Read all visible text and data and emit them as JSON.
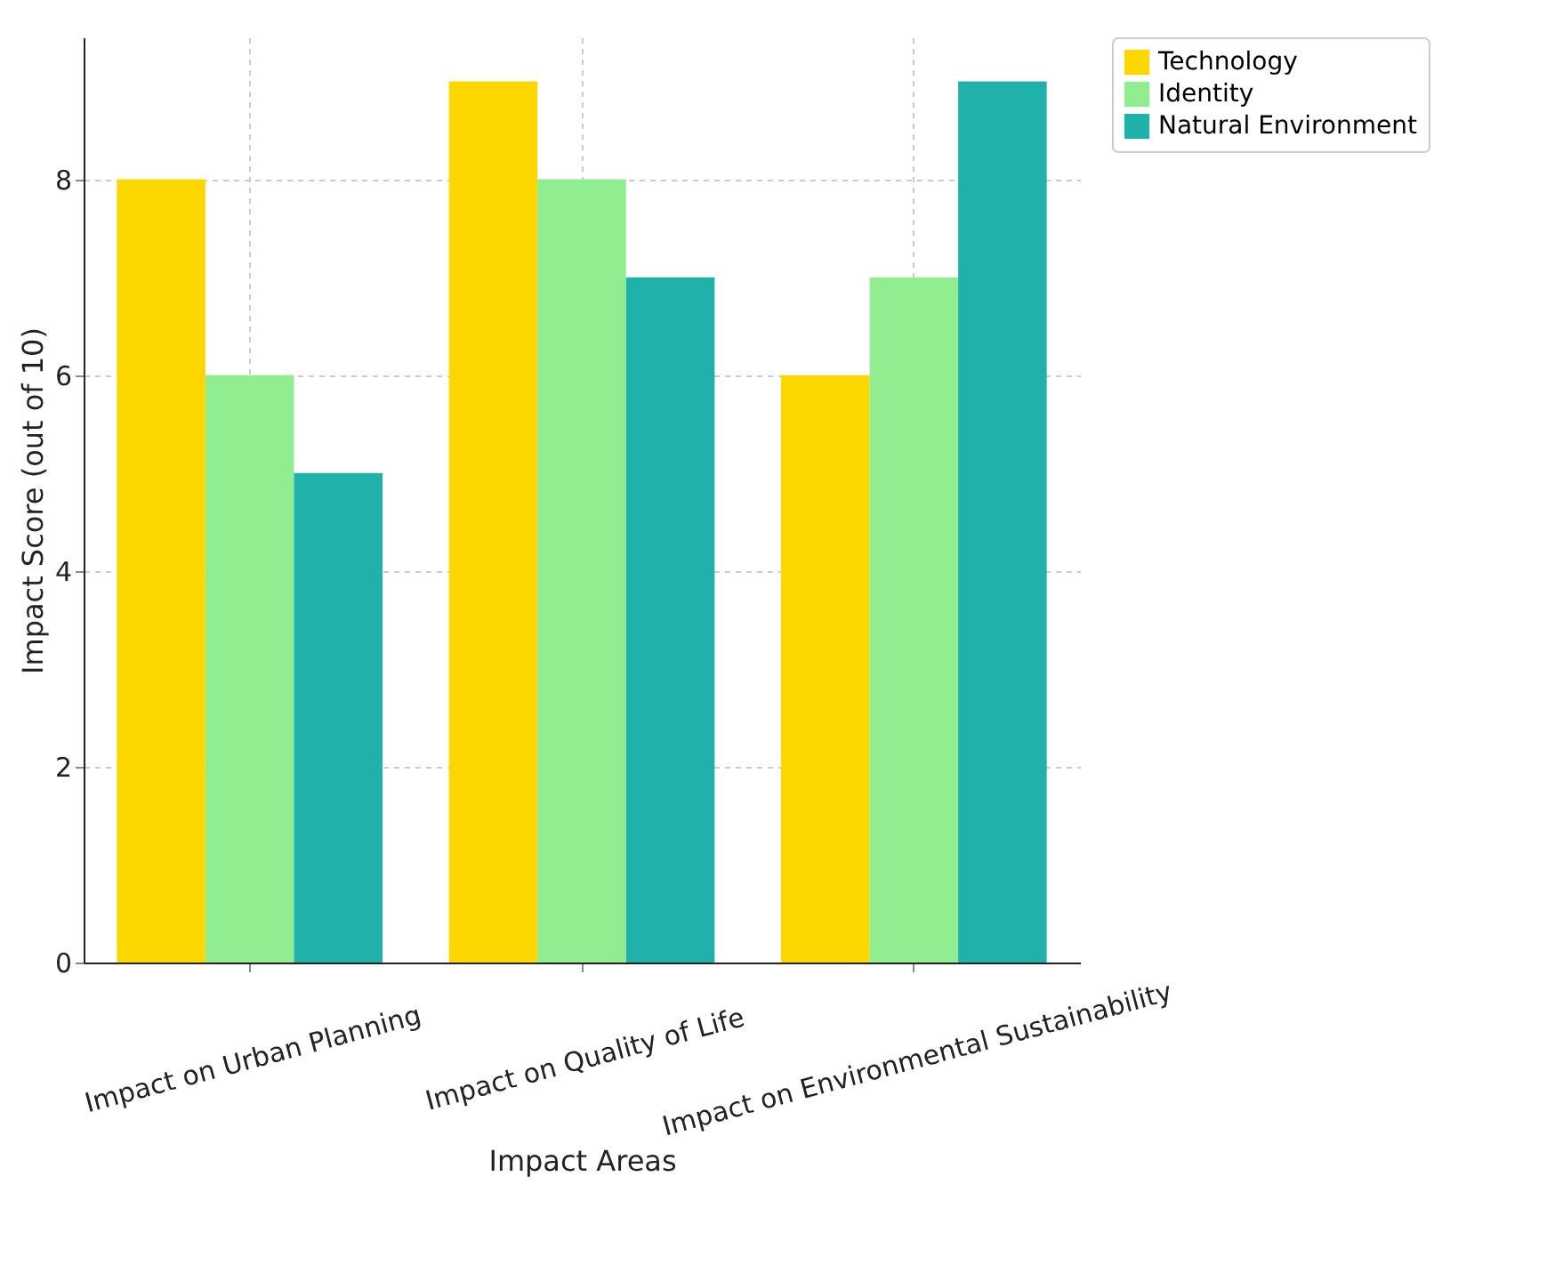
{
  "chart_data": {
    "type": "bar",
    "xlabel": "Impact Areas",
    "ylabel": "Impact Score (out of 10)",
    "categories": [
      "Impact on Urban Planning",
      "Impact on Quality of Life",
      "Impact on Environmental Sustainability"
    ],
    "series": [
      {
        "name": "Technology",
        "color": "#ffd700",
        "values": [
          8,
          9,
          6
        ]
      },
      {
        "name": "Identity",
        "color": "#90ee90",
        "values": [
          6,
          8,
          7
        ]
      },
      {
        "name": "Natural Environment",
        "color": "#20b2aa",
        "values": [
          5,
          7,
          9
        ]
      }
    ],
    "ylim": [
      0,
      9.45
    ],
    "yticks": [
      0,
      2,
      4,
      6,
      8
    ],
    "grid": true,
    "legend": "top right"
  }
}
